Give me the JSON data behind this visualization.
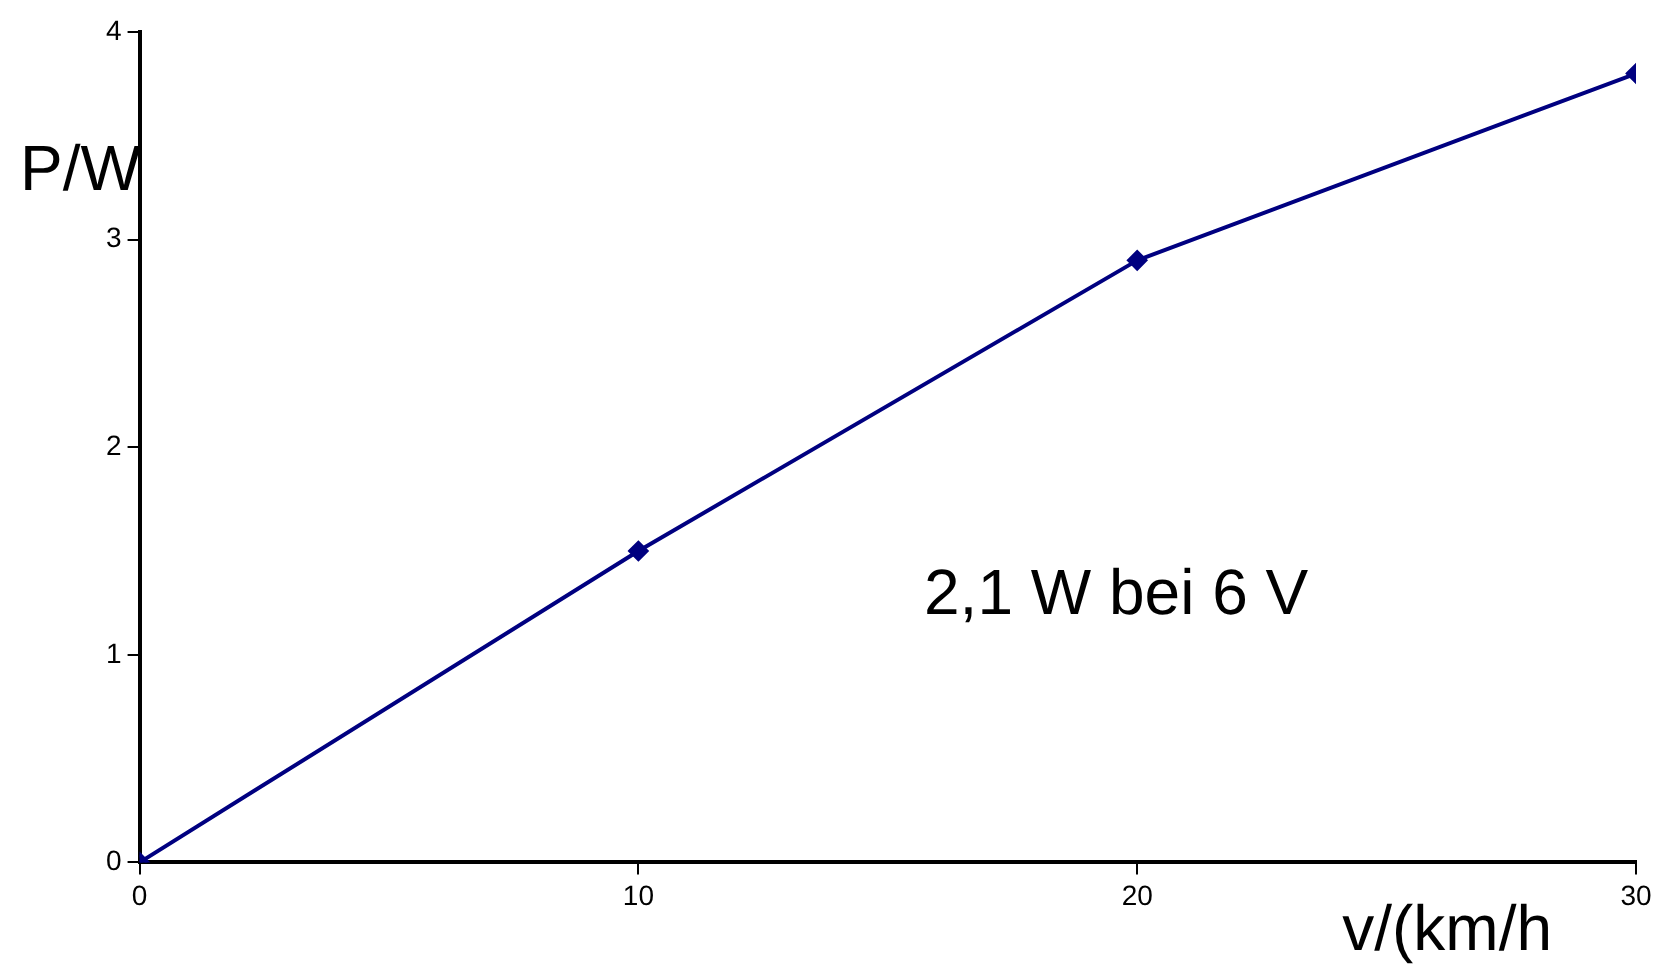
{
  "chart_data": {
    "type": "line",
    "xlabel": "v/(km/h",
    "ylabel": "P/W",
    "annotations": [
      "2,1 W bei 6 V"
    ],
    "x": [
      0,
      10,
      20,
      30
    ],
    "series": [
      {
        "color": "#000080",
        "values": [
          0,
          1.5,
          2.9,
          3.8
        ]
      }
    ],
    "xlim": [
      0,
      30
    ],
    "xticks": [
      0,
      10,
      20,
      30
    ],
    "ylim": [
      0,
      4
    ],
    "yticks": [
      0,
      1,
      2,
      3,
      4
    ],
    "grid": false,
    "legend": false,
    "marker": "diamond",
    "line_style": "solid"
  }
}
